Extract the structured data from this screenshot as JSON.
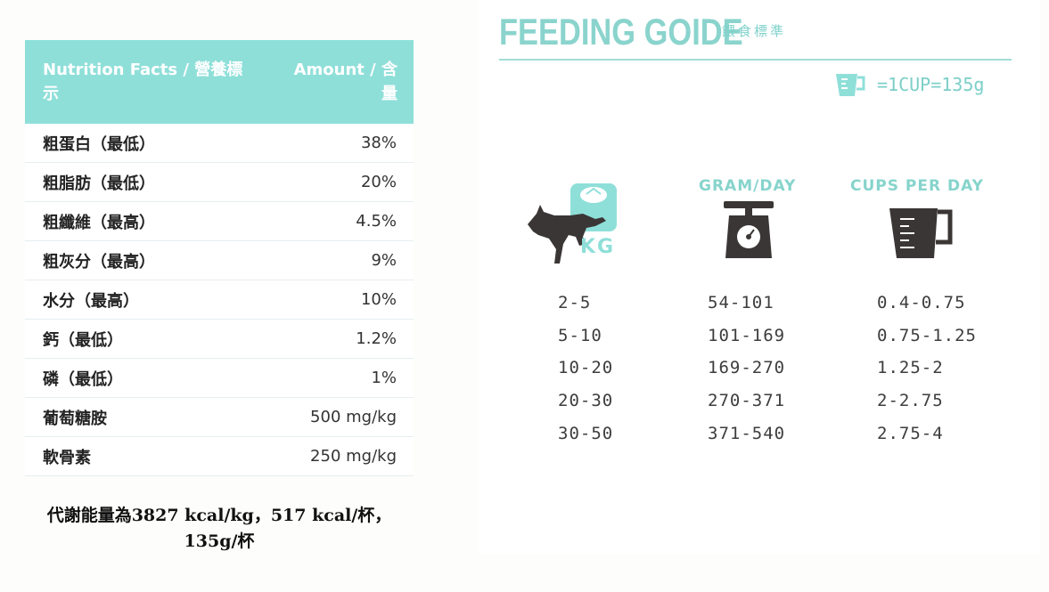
{
  "nutrition": {
    "header_left": "Nutrition Facts / 營養標示",
    "header_right": "Amount / 含量",
    "rows": [
      {
        "name": "粗蛋白（最低）",
        "value": "38%"
      },
      {
        "name": "粗脂肪（最低）",
        "value": "20%"
      },
      {
        "name": "粗纖維（最高）",
        "value": "4.5%"
      },
      {
        "name": "粗灰分（最高）",
        "value": "9%"
      },
      {
        "name": "水分（最高）",
        "value": "10%"
      },
      {
        "name": "鈣（最低）",
        "value": "1.2%"
      },
      {
        "name": "磷（最低）",
        "value": "1%"
      },
      {
        "name": "葡萄糖胺",
        "value": "500 mg/kg"
      },
      {
        "name": "軟骨素",
        "value": "250 mg/kg"
      }
    ],
    "energy_line1": "代謝能量為3827 kcal/kg，517 kcal/杯，",
    "energy_line2": "135g/杯"
  },
  "guide": {
    "title": "FEEDING GOIDE",
    "subtitle": "餵食標準",
    "cup_note": "=1CUP=135g",
    "kg_label": "KG",
    "gram_header": "GRAM/DAY",
    "cups_header": "CUPS PER DAY",
    "weights": [
      "2-5",
      "5-10",
      "10-20",
      "20-30",
      "30-50"
    ],
    "grams": [
      "54-101",
      "101-169",
      "169-270",
      "270-371",
      "371-540"
    ],
    "cups": [
      "0.4-0.75",
      "0.75-1.25",
      "1.25-2",
      "2-2.75",
      "2.75-4"
    ],
    "icons": {
      "dog": "running-dog-icon",
      "scale": "kitchen-scale-icon",
      "cup": "measuring-cup-icon"
    },
    "colors": {
      "accent": "#8fdfd9",
      "icon_dark": "#3b3636"
    }
  }
}
